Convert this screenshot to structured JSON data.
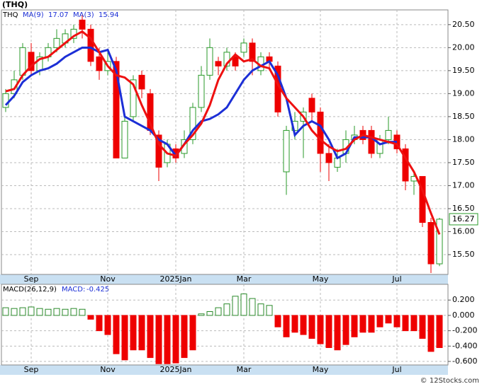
{
  "chart_data": [
    {
      "type": "candlestick",
      "title": "(THQ)",
      "symbol": "THQ",
      "categories": [
        null,
        null,
        null,
        "Sep",
        null,
        null,
        null,
        null,
        null,
        null,
        null,
        null,
        "Nov",
        null,
        null,
        null,
        null,
        null,
        null,
        null,
        "2025Jan",
        null,
        null,
        null,
        null,
        null,
        null,
        null,
        "Mar",
        null,
        null,
        null,
        null,
        null,
        null,
        null,
        null,
        "May",
        null,
        null,
        null,
        null,
        null,
        null,
        null,
        null,
        "Jul",
        null,
        null,
        null,
        null,
        null
      ],
      "open": [
        18.7,
        19.0,
        19.4,
        19.9,
        19.5,
        19.8,
        20.0,
        20.1,
        20.2,
        20.6,
        20.4,
        19.8,
        19.5,
        19.7,
        17.6,
        18.5,
        19.4,
        19.0,
        18.1,
        17.5,
        17.8,
        17.7,
        18.0,
        18.7,
        19.4,
        19.7,
        19.6,
        19.8,
        19.9,
        20.1,
        19.5,
        19.8,
        19.6,
        17.3,
        18.2,
        18.4,
        18.9,
        18.6,
        17.7,
        17.4,
        17.7,
        18.0,
        18.2,
        18.2,
        17.7,
        18.0,
        18.1,
        17.8,
        17.1,
        17.2,
        16.2,
        15.3
      ],
      "high": [
        19.1,
        19.5,
        20.1,
        20.1,
        19.9,
        20.1,
        20.4,
        20.4,
        20.5,
        20.7,
        20.5,
        20.0,
        19.9,
        19.8,
        18.5,
        19.4,
        19.5,
        19.1,
        18.2,
        18.0,
        17.9,
        18.2,
        18.8,
        19.6,
        20.2,
        19.8,
        20.0,
        19.9,
        20.2,
        20.2,
        19.9,
        19.9,
        19.7,
        18.3,
        18.6,
        18.7,
        19.0,
        18.7,
        17.9,
        17.8,
        18.2,
        18.3,
        18.3,
        18.3,
        18.1,
        18.5,
        18.2,
        17.9,
        17.3,
        17.2,
        16.3,
        16.3
      ],
      "low": [
        18.6,
        18.9,
        19.3,
        19.4,
        19.4,
        19.7,
        19.9,
        20.0,
        20.1,
        20.2,
        19.6,
        19.3,
        19.4,
        17.6,
        17.6,
        18.4,
        18.9,
        18.1,
        17.1,
        17.4,
        17.5,
        17.6,
        17.9,
        18.6,
        19.3,
        19.4,
        19.5,
        19.5,
        19.8,
        19.4,
        19.4,
        19.5,
        18.5,
        16.8,
        18.0,
        17.6,
        18.4,
        17.3,
        17.1,
        17.3,
        17.5,
        17.9,
        17.9,
        17.6,
        17.6,
        17.9,
        17.7,
        16.9,
        16.8,
        16.1,
        15.1,
        15.25
      ],
      "close": [
        19.0,
        19.3,
        20.0,
        19.5,
        19.8,
        20.0,
        20.2,
        20.3,
        20.4,
        20.4,
        19.7,
        19.5,
        19.7,
        17.6,
        18.4,
        19.3,
        19.1,
        18.2,
        17.4,
        17.9,
        17.6,
        18.0,
        18.7,
        19.4,
        20.0,
        19.6,
        19.9,
        19.6,
        20.1,
        19.7,
        19.8,
        19.7,
        18.6,
        18.2,
        18.4,
        18.6,
        18.6,
        17.7,
        17.5,
        17.6,
        18.0,
        18.1,
        18.0,
        17.7,
        18.0,
        18.2,
        17.8,
        17.1,
        17.2,
        16.2,
        15.3,
        16.27
      ],
      "up_color": "#2a9a2a",
      "down_color": "#ee0000",
      "series": [
        {
          "name": "MA(9)",
          "legend_value": 17.07,
          "color": "#1c2fd6",
          "values": [
            18.75,
            18.95,
            19.25,
            19.4,
            19.5,
            19.55,
            19.65,
            19.8,
            19.9,
            20.0,
            20.0,
            19.9,
            19.95,
            19.5,
            18.5,
            18.4,
            18.3,
            18.2,
            18.0,
            17.9,
            17.65,
            17.9,
            18.2,
            18.4,
            18.45,
            18.55,
            18.7,
            19.0,
            19.3,
            19.5,
            19.6,
            19.7,
            19.4,
            18.9,
            18.1,
            18.3,
            18.4,
            18.3,
            18.0,
            17.6,
            17.7,
            18.05,
            18.05,
            18.05,
            17.9,
            17.95,
            17.95,
            null,
            null,
            null,
            null,
            null
          ]
        },
        {
          "name": "MA(3)",
          "legend_value": 15.94,
          "color": "#ee1111",
          "values": [
            19.05,
            19.1,
            19.4,
            19.6,
            19.75,
            19.8,
            19.95,
            20.1,
            20.25,
            20.35,
            20.2,
            19.9,
            19.6,
            19.4,
            19.35,
            19.2,
            18.75,
            18.35,
            17.9,
            17.7,
            17.65,
            17.9,
            18.1,
            18.35,
            18.75,
            19.3,
            19.65,
            19.85,
            19.7,
            19.75,
            19.6,
            19.55,
            19.2,
            18.9,
            18.7,
            18.5,
            18.2,
            18.0,
            17.85,
            17.75,
            17.8,
            18.0,
            18.1,
            18.05,
            18.0,
            17.95,
            17.9,
            17.6,
            17.3,
            16.9,
            16.4,
            15.94
          ]
        }
      ],
      "last_price": {
        "value": 16.27,
        "label": "16.27"
      },
      "ylim": [
        15.07,
        20.82
      ],
      "yticks": [
        {
          "value": 15.5,
          "label": "15.50"
        },
        {
          "value": 16,
          "label": "16.00"
        },
        {
          "value": 16.5,
          "label": "16.50"
        },
        {
          "value": 17,
          "label": "17.00"
        },
        {
          "value": 17.5,
          "label": "17.50"
        },
        {
          "value": 18,
          "label": "18.00"
        },
        {
          "value": 18.5,
          "label": "18.50"
        },
        {
          "value": 19,
          "label": "19.00"
        },
        {
          "value": 19.5,
          "label": "19.50"
        },
        {
          "value": 20,
          "label": "20.00"
        },
        {
          "value": 20.5,
          "label": "20.50"
        }
      ],
      "grid": true
    },
    {
      "type": "histogram",
      "title": "MACD(26,12,9)",
      "value_name": "MACD:",
      "current": -0.425,
      "categories": [
        null,
        null,
        null,
        "Sep",
        null,
        null,
        null,
        null,
        null,
        null,
        null,
        null,
        "Nov",
        null,
        null,
        null,
        null,
        null,
        null,
        null,
        "2025Jan",
        null,
        null,
        null,
        null,
        null,
        null,
        null,
        "Mar",
        null,
        null,
        null,
        null,
        null,
        null,
        null,
        null,
        "May",
        null,
        null,
        null,
        null,
        null,
        null,
        null,
        null,
        "Jul",
        null,
        null,
        null,
        null,
        null
      ],
      "values": [
        0.1,
        0.09,
        0.1,
        0.11,
        0.09,
        0.08,
        0.09,
        0.08,
        0.09,
        0.08,
        -0.05,
        -0.2,
        -0.25,
        -0.5,
        -0.58,
        -0.45,
        -0.45,
        -0.55,
        -0.63,
        -0.63,
        -0.62,
        -0.55,
        -0.45,
        0.02,
        0.05,
        0.1,
        0.15,
        0.25,
        0.28,
        0.22,
        0.15,
        0.13,
        -0.15,
        -0.28,
        -0.22,
        -0.25,
        -0.3,
        -0.37,
        -0.42,
        -0.45,
        -0.38,
        -0.28,
        -0.22,
        -0.22,
        -0.15,
        -0.1,
        -0.15,
        -0.2,
        -0.2,
        -0.3,
        -0.47,
        -0.42
      ],
      "up_color": "#2a8a2a",
      "down_color": "#ee0000",
      "ylim": [
        -0.646,
        0.405
      ],
      "yticks": [
        {
          "value": -0.6,
          "label": "-0.600"
        },
        {
          "value": -0.4,
          "label": "-0.400"
        },
        {
          "value": -0.2,
          "label": "-0.200"
        },
        {
          "value": 0,
          "label": "0.000"
        },
        {
          "value": 0.2,
          "label": "0.200"
        }
      ],
      "grid": true
    }
  ],
  "footer": "© 12Stocks.com"
}
